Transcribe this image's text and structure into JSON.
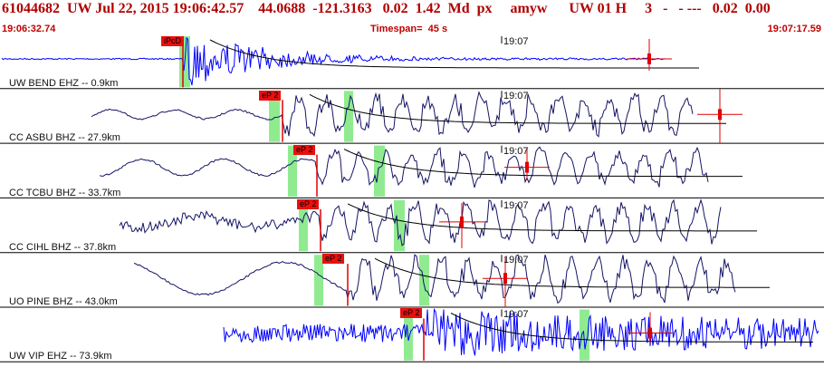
{
  "header": {
    "title": "61044682  UW Jul 22, 2015 19:06:42.57    44.0688  -121.3163   0.02  1.42  Md  px     amyw      UW 01 H     3   -   - ---   0.02  0.00",
    "start_time": "19:06:32.74",
    "timespan": "Timespan=  45 s",
    "end_time": "19:07:17.59"
  },
  "time_marker": "19:07",
  "traces": [
    {
      "label": "UW BEND EHZ -- 0.9km",
      "pick": "iPcD",
      "color": "#0000ff"
    },
    {
      "label": "CC ASBU BHZ -- 27.9km",
      "pick": "eP 2",
      "color": "#141464"
    },
    {
      "label": "CC TCBU BHZ -- 33.7km",
      "pick": "eP 2",
      "color": "#141464"
    },
    {
      "label": "CC CIHL BHZ -- 37.8km",
      "pick": "eP 2",
      "color": "#141464"
    },
    {
      "label": "UO PINE BHZ -- 43.0km",
      "pick": "eP 2",
      "color": "#141464"
    },
    {
      "label": "UW VIP EHZ -- 73.9km",
      "pick": "eP 2",
      "color": "#0000ff"
    }
  ]
}
